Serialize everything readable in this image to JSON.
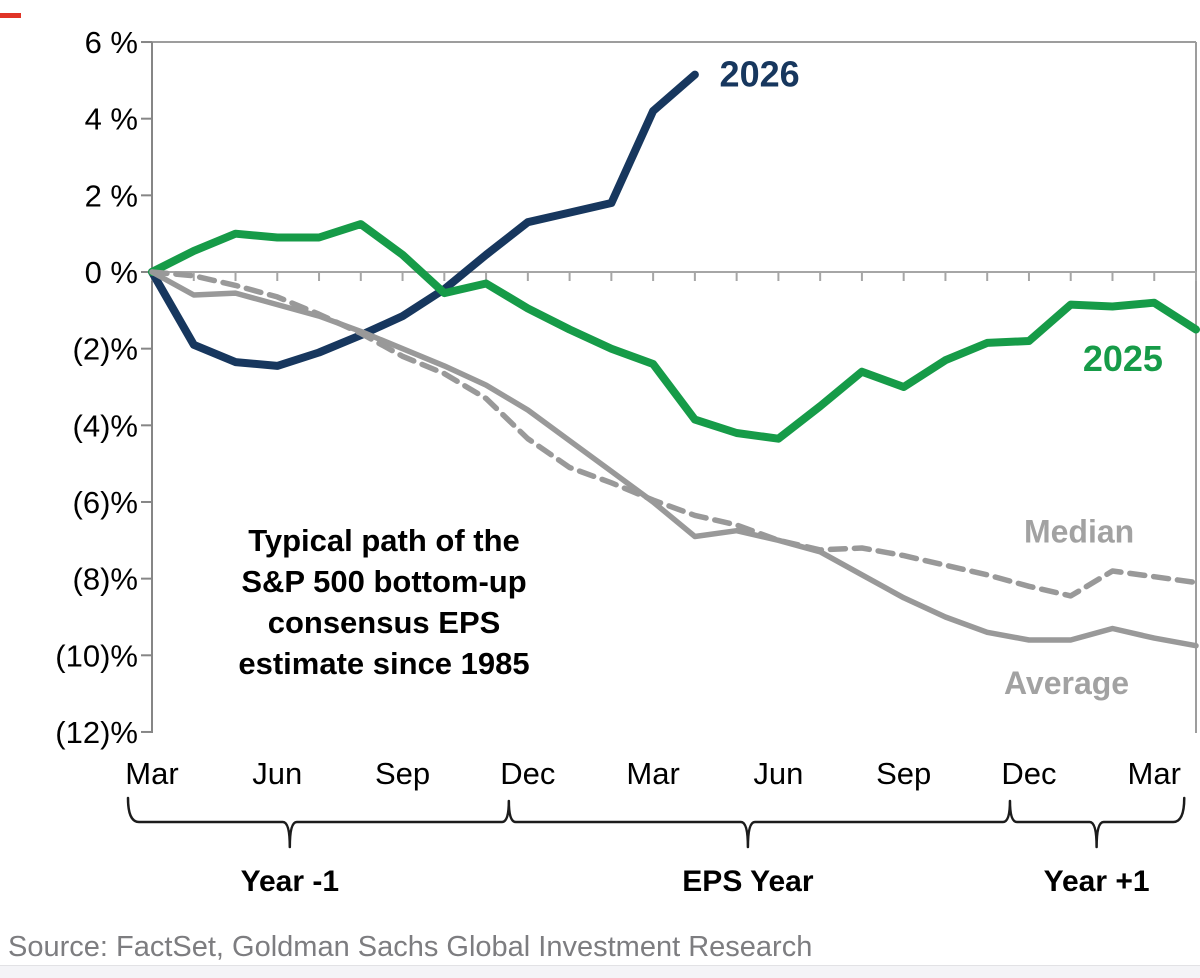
{
  "source_line": "Source: FactSet, Goldman Sachs Global Investment Research",
  "misc": {
    "red_mark_color": "#e03427"
  },
  "chart_data": {
    "type": "line",
    "annotation": {
      "lines": [
        "Typical path of the",
        "S&P 500 bottom-up",
        "consensus EPS",
        "estimate since 1985"
      ]
    },
    "y_axis": {
      "min": -12,
      "max": 6,
      "unit": "%",
      "ticks": [
        {
          "label": "6 %",
          "value": 6
        },
        {
          "label": "4 %",
          "value": 4
        },
        {
          "label": "2 %",
          "value": 2
        },
        {
          "label": "0 %",
          "value": 0
        },
        {
          "label": "(2)%",
          "value": -2
        },
        {
          "label": "(4)%",
          "value": -4
        },
        {
          "label": "(6)%",
          "value": -6
        },
        {
          "label": "(8)%",
          "value": -8
        },
        {
          "label": "(10)%",
          "value": -10
        },
        {
          "label": "(12)%",
          "value": -12
        }
      ]
    },
    "x_axis": {
      "total_months": 25,
      "tick_labels": [
        "Mar",
        "Jun",
        "Sep",
        "Dec",
        "Mar",
        "Jun",
        "Sep",
        "Dec",
        "Mar"
      ],
      "tick_month_indices": [
        0,
        3,
        6,
        9,
        12,
        15,
        18,
        21,
        24
      ]
    },
    "series": [
      {
        "name": "2026",
        "color": "#17375e",
        "label_color": "#17375e",
        "line": "solid",
        "width": 8,
        "start_month": 0,
        "label": {
          "month": 14.55,
          "value": 5.15,
          "size": 36
        },
        "values": [
          0,
          -1.9,
          -2.35,
          -2.45,
          -2.1,
          -1.65,
          -1.15,
          -0.45,
          0.45,
          1.3,
          1.55,
          1.8,
          4.2,
          5.15
        ]
      },
      {
        "name": "2025",
        "color": "#169b48",
        "label_color": "#169b48",
        "line": "solid",
        "width": 8,
        "start_month": 0,
        "label": {
          "month": 23.25,
          "value": -2.27,
          "size": 36
        },
        "values": [
          0,
          0.55,
          1.0,
          0.9,
          0.9,
          1.25,
          0.45,
          -0.55,
          -0.3,
          -0.95,
          -1.5,
          -2.0,
          -2.4,
          -3.85,
          -4.2,
          -4.35,
          -3.5,
          -2.6,
          -3.0,
          -2.3,
          -1.85,
          -1.8,
          -0.85,
          -0.9,
          -0.8,
          -1.5
        ]
      },
      {
        "name": "Median",
        "color": "#999999",
        "label_color": "#a2a2a2",
        "line": "dashed",
        "width": 5.5,
        "start_month": 0,
        "label": {
          "month": 22.2,
          "value": -6.75,
          "size": 32
        },
        "values": [
          0,
          -0.1,
          -0.35,
          -0.65,
          -1.1,
          -1.6,
          -2.2,
          -2.65,
          -3.3,
          -4.35,
          -5.1,
          -5.5,
          -5.95,
          -6.35,
          -6.6,
          -7.0,
          -7.25,
          -7.2,
          -7.4,
          -7.65,
          -7.9,
          -8.2,
          -8.45,
          -7.8,
          -7.95,
          -8.1
        ]
      },
      {
        "name": "Average",
        "color": "#999999",
        "label_color": "#a2a2a2",
        "line": "solid",
        "width": 5.5,
        "start_month": 0,
        "label": {
          "month": 21.9,
          "value": -10.7,
          "size": 32
        },
        "values": [
          0,
          -0.6,
          -0.55,
          -0.85,
          -1.15,
          -1.55,
          -2.0,
          -2.45,
          -2.95,
          -3.6,
          -4.4,
          -5.2,
          -6.0,
          -6.9,
          -6.75,
          -7.0,
          -7.3,
          -7.9,
          -8.5,
          -9.0,
          -9.4,
          -9.6,
          -9.6,
          -9.3,
          -9.55,
          -9.75
        ]
      }
    ],
    "braces": [
      {
        "label": "Year -1",
        "from_month": 0,
        "to_month": 9,
        "label_month": 3.3
      },
      {
        "label": "EPS Year",
        "from_month": 9,
        "to_month": 21,
        "label_month": 14.27
      },
      {
        "label": "Year +1",
        "from_month": 21,
        "to_month": 24,
        "label_month": 22.62
      }
    ]
  }
}
